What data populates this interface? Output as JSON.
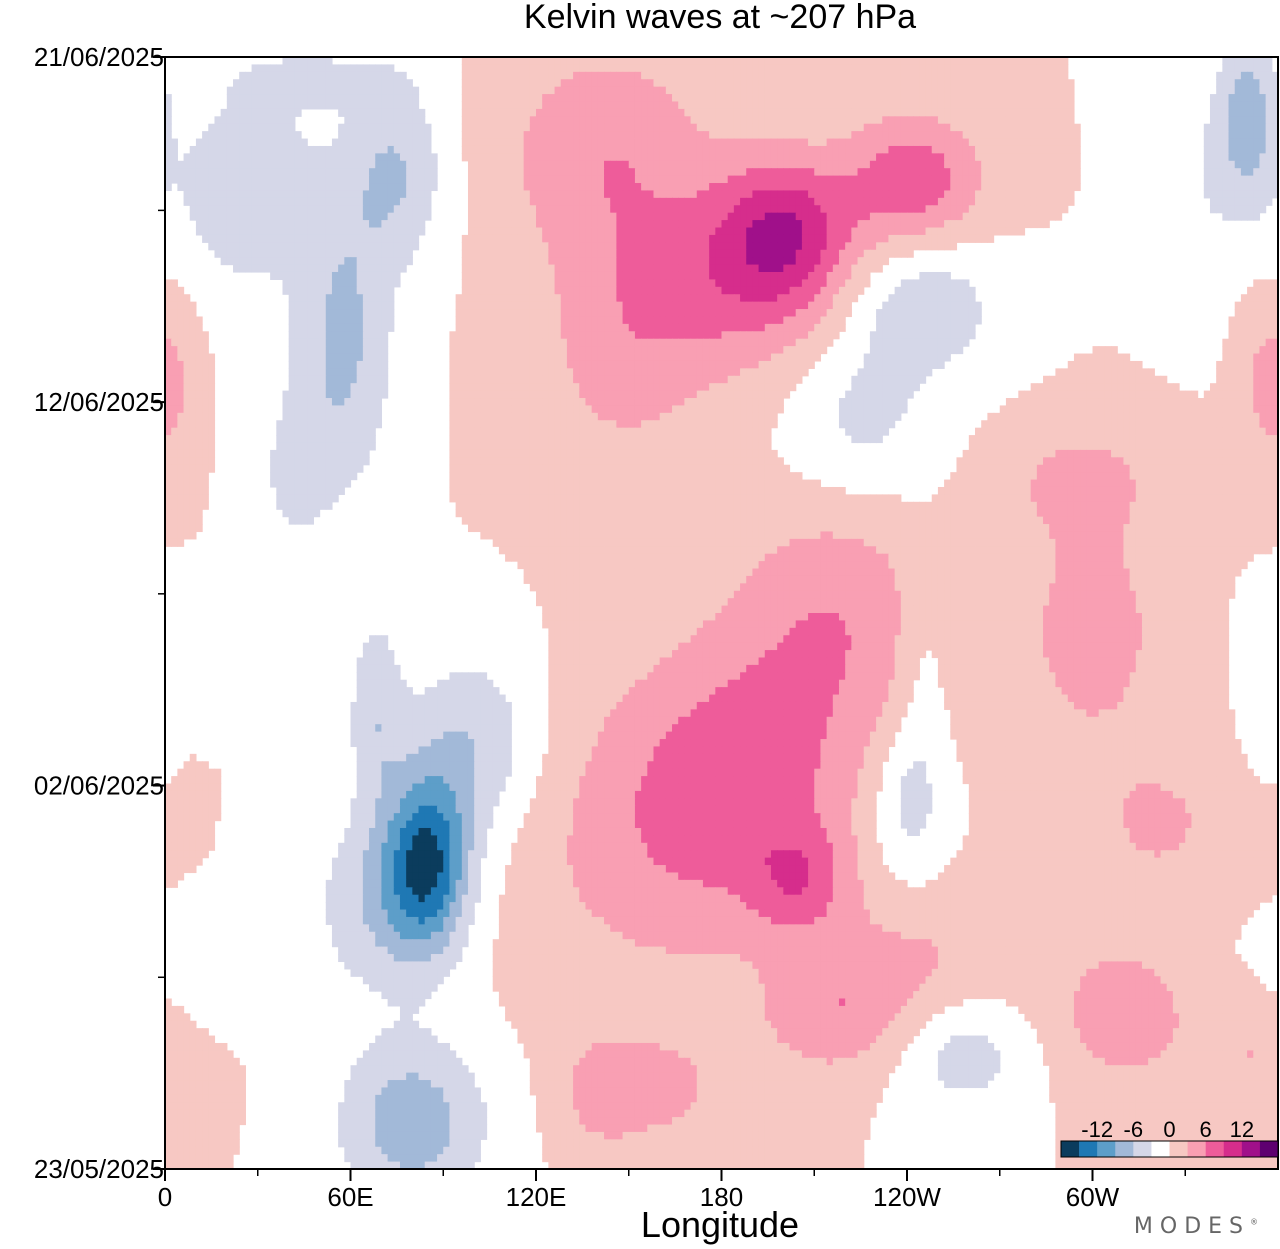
{
  "chart_data": {
    "type": "heatmap",
    "title": "Kelvin waves at ~207 hPa",
    "xlabel": "Longitude",
    "ylabel": "",
    "x_ticks": [
      {
        "lon": 0,
        "label": "0"
      },
      {
        "lon": 60,
        "label": "60E"
      },
      {
        "lon": 120,
        "label": "120E"
      },
      {
        "lon": 180,
        "label": "180"
      },
      {
        "lon": 240,
        "label": "120W"
      },
      {
        "lon": 300,
        "label": "60W"
      }
    ],
    "x_minor_ticks": [
      30,
      90,
      150,
      210,
      270,
      330
    ],
    "xlim": [
      0,
      360
    ],
    "y_ticks": [
      {
        "day": 0,
        "label": "23/05/2025"
      },
      {
        "day": 10,
        "label": "02/06/2025"
      },
      {
        "day": 20,
        "label": "12/06/2025"
      },
      {
        "day": 29,
        "label": "21/06/2025"
      }
    ],
    "y_minor_ticks": [
      5,
      15,
      25
    ],
    "ylim": [
      0,
      29
    ],
    "color_levels": [
      -15,
      -12,
      -9,
      -6,
      -3,
      0,
      3,
      6,
      9,
      12,
      15
    ],
    "colors": [
      "#0b3c5d",
      "#1f78b4",
      "#5d9ec9",
      "#a2b9d8",
      "#d5d7e8",
      "#ffffff",
      "#f7c8c3",
      "#f99fb3",
      "#ee5c9a",
      "#d62d8c",
      "#a0108a",
      "#5e0070"
    ],
    "colorbar_labels": [
      "-12",
      "-6",
      "0",
      "6",
      "12"
    ],
    "colorbar_label_values": [
      -12,
      -6,
      0,
      6,
      12
    ],
    "blobs": [
      {
        "lon": 26,
        "day": 25.5,
        "value": -5.5,
        "rx": 24,
        "ry": 2.6
      },
      {
        "lon": 48,
        "day": 28.5,
        "value": -3,
        "rx": 30,
        "ry": 0.9
      },
      {
        "lon": 58,
        "day": 21.5,
        "value": -6.5,
        "rx": 16,
        "ry": 3.8
      },
      {
        "lon": 75,
        "day": 26,
        "value": -6,
        "rx": 16,
        "ry": 2.4
      },
      {
        "lon": 68,
        "day": 12,
        "value": -5,
        "rx": 9,
        "ry": 2.5
      },
      {
        "lon": 85,
        "day": 8,
        "value": -13,
        "rx": 13,
        "ry": 2.2
      },
      {
        "lon": 99,
        "day": 11,
        "value": -6,
        "rx": 22,
        "ry": 2.5
      },
      {
        "lon": 71,
        "day": 7,
        "value": -6,
        "rx": 22,
        "ry": 2.4
      },
      {
        "lon": 80,
        "day": 1.2,
        "value": -8,
        "rx": 24,
        "ry": 2.2
      },
      {
        "lon": 40,
        "day": 18,
        "value": -3,
        "rx": 15,
        "ry": 2.8
      },
      {
        "lon": 8,
        "day": 14,
        "value": -2.5,
        "rx": 14,
        "ry": 1.4
      },
      {
        "lon": 18,
        "day": 5,
        "value": -2.5,
        "rx": 26,
        "ry": 1.3
      },
      {
        "lon": 143,
        "day": 26.5,
        "value": 5.5,
        "rx": 34,
        "ry": 2.8
      },
      {
        "lon": 200,
        "day": 24.5,
        "value": 9.5,
        "rx": 22,
        "ry": 1.9
      },
      {
        "lon": 242,
        "day": 25.8,
        "value": 8,
        "rx": 22,
        "ry": 1.7
      },
      {
        "lon": 184,
        "day": 23,
        "value": 6,
        "rx": 40,
        "ry": 2.4
      },
      {
        "lon": 148,
        "day": 21,
        "value": 3.5,
        "rx": 28,
        "ry": 3.2
      },
      {
        "lon": 218,
        "day": 14.5,
        "value": 5,
        "rx": 32,
        "ry": 3.2
      },
      {
        "lon": 188,
        "day": 10.5,
        "value": 6,
        "rx": 38,
        "ry": 3.6
      },
      {
        "lon": 158,
        "day": 8.5,
        "value": 4,
        "rx": 46,
        "ry": 3.8
      },
      {
        "lon": 205,
        "day": 7.5,
        "value": 5.5,
        "rx": 16,
        "ry": 1.4
      },
      {
        "lon": 218,
        "day": 4,
        "value": 5,
        "rx": 24,
        "ry": 1.6
      },
      {
        "lon": 248,
        "day": 5.5,
        "value": 3,
        "rx": 34,
        "ry": 1.8
      },
      {
        "lon": 310,
        "day": 4,
        "value": 5,
        "rx": 22,
        "ry": 1.9
      },
      {
        "lon": 322,
        "day": 9,
        "value": 3.5,
        "rx": 22,
        "ry": 1.8
      },
      {
        "lon": 300,
        "day": 14,
        "value": 4.5,
        "rx": 24,
        "ry": 3.2
      },
      {
        "lon": 296,
        "day": 18,
        "value": 3.5,
        "rx": 26,
        "ry": 1.5
      },
      {
        "lon": 160,
        "day": 2,
        "value": 3.5,
        "rx": 26,
        "ry": 1.8
      },
      {
        "lon": 140,
        "day": 2,
        "value": 3,
        "rx": 12,
        "ry": 1.4
      },
      {
        "lon": 354,
        "day": 20.5,
        "value": 3,
        "rx": 8,
        "ry": 2.4
      },
      {
        "lon": 4,
        "day": 20.5,
        "value": 3,
        "rx": 8,
        "ry": 2.4
      },
      {
        "lon": 244,
        "day": 22.5,
        "value": -5.5,
        "rx": 26,
        "ry": 1.8
      },
      {
        "lon": 225,
        "day": 19.5,
        "value": -4,
        "rx": 24,
        "ry": 2.2
      },
      {
        "lon": 350,
        "day": 27.5,
        "value": -7,
        "rx": 10,
        "ry": 2.2
      },
      {
        "lon": 335,
        "day": 25.5,
        "value": -2.5,
        "rx": 18,
        "ry": 2.8
      },
      {
        "lon": 240,
        "day": 9.5,
        "value": -4.5,
        "rx": 12,
        "ry": 2.0
      },
      {
        "lon": 258,
        "day": 3,
        "value": -4.5,
        "rx": 22,
        "ry": 1.6
      },
      {
        "lon": 245,
        "day": 13,
        "value": -2.5,
        "rx": 8,
        "ry": 3.2
      },
      {
        "lon": 355,
        "day": 12.5,
        "value": -2.5,
        "rx": 6,
        "ry": 1.6
      },
      {
        "lon": 353,
        "day": 3,
        "value": 3,
        "rx": 18,
        "ry": 1.8
      }
    ]
  },
  "brand": {
    "name": "MODES",
    "mark": "®"
  }
}
